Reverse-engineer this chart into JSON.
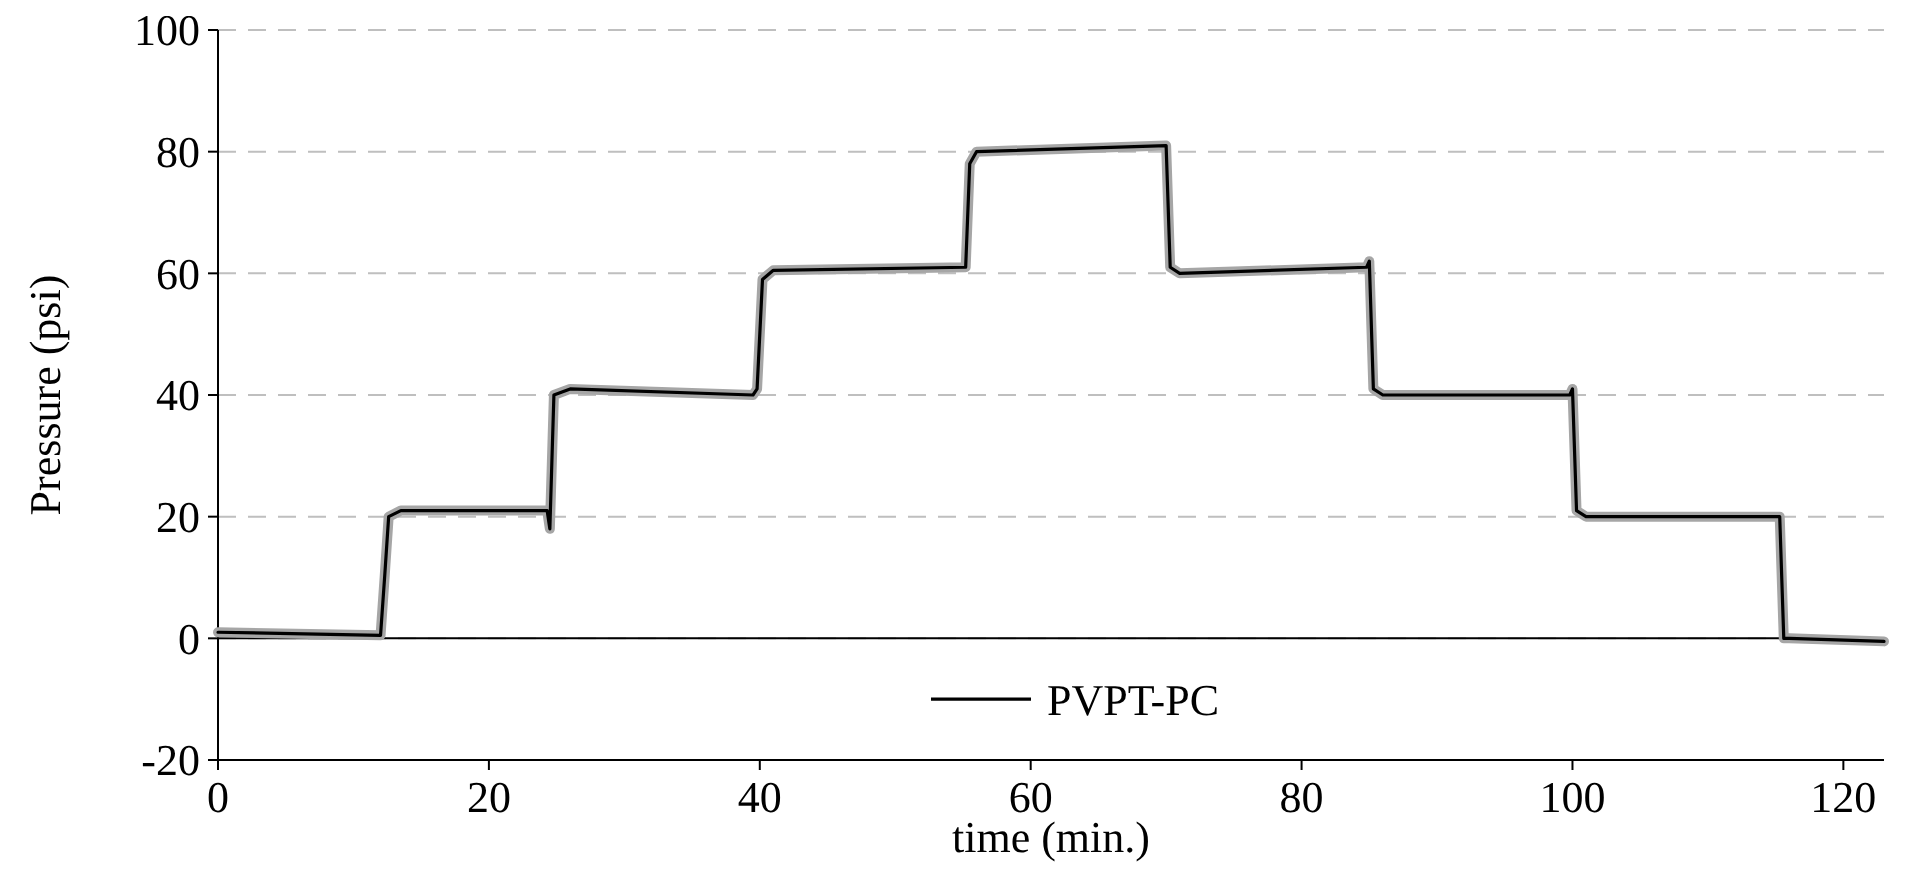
{
  "chart_data": {
    "type": "line",
    "xlabel": "time (min.)",
    "ylabel": "Pressure (psi)",
    "xlim": [
      0,
      123
    ],
    "xticks": [
      0,
      20,
      40,
      60,
      80,
      100,
      120
    ],
    "ylim": [
      -20,
      100
    ],
    "yticks": [
      -20,
      0,
      20,
      40,
      60,
      80,
      100
    ],
    "grid": "y",
    "legend": "bottom",
    "line_style": "solid",
    "marker": "none",
    "series": [
      {
        "color": "#a6a6a6",
        "x": [
          0,
          12,
          12.3,
          12.6,
          13.5,
          24.3,
          24.5,
          24.8,
          26,
          39.5,
          39.8,
          40.2,
          41,
          55.2,
          55.5,
          56,
          70,
          70.3,
          71,
          84.8,
          85,
          85.3,
          86,
          99.8,
          100,
          100.3,
          101,
          115.3,
          115.6,
          116,
          123
        ],
        "values": [
          1,
          0.5,
          10,
          20,
          21,
          21,
          18,
          40,
          41,
          40,
          41,
          59,
          60.5,
          61,
          78,
          80,
          81,
          61,
          60,
          61,
          62,
          41,
          40,
          40,
          41,
          21,
          20,
          20,
          0,
          0,
          -0.5
        ]
      },
      {
        "name": "PVPT-PC",
        "color": "#000000",
        "x": [
          0,
          12,
          12.3,
          12.6,
          13.5,
          24.3,
          24.5,
          24.8,
          26,
          39.5,
          39.8,
          40.2,
          41,
          55.2,
          55.5,
          56,
          70,
          70.3,
          71,
          84.8,
          85,
          85.3,
          86,
          99.8,
          100,
          100.3,
          101,
          115.3,
          115.6,
          116,
          123
        ],
        "values": [
          1,
          0.5,
          10,
          20,
          21,
          21,
          18,
          40,
          41,
          40,
          41,
          59,
          60.5,
          61,
          78,
          80,
          81,
          61,
          60,
          61,
          62,
          41,
          40,
          40,
          41,
          21,
          20,
          20,
          0,
          0,
          -0.5
        ]
      }
    ]
  }
}
